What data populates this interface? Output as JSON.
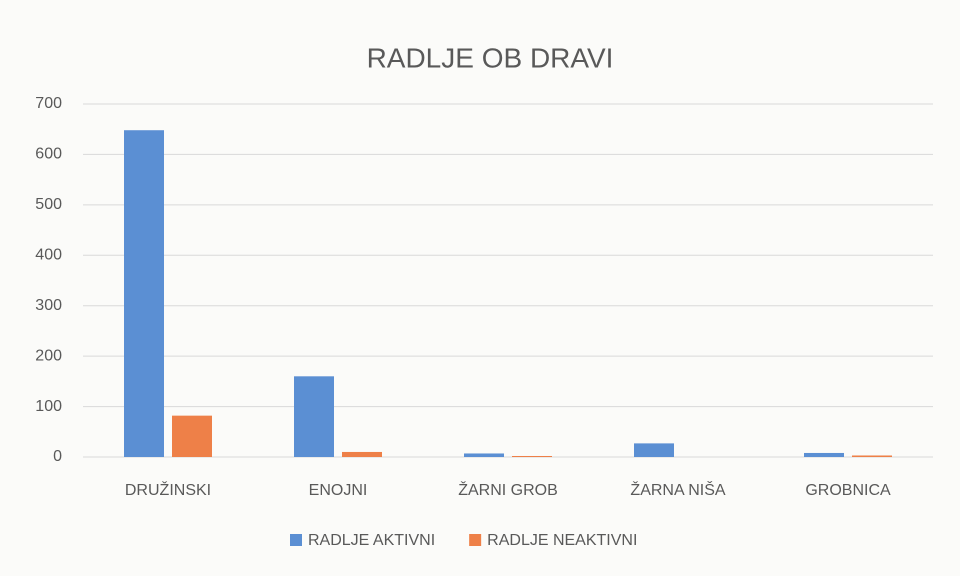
{
  "chart_data": {
    "type": "bar",
    "title": "RADLJE OB DRAVI",
    "categories": [
      "DRUŽINSKI",
      "ENOJNI",
      "ŽARNI GROB",
      "ŽARNA NIŠA",
      "GROBNICA"
    ],
    "series": [
      {
        "name": "RADLJE AKTIVNI",
        "color": "#5b8fd3",
        "values": [
          648,
          160,
          7,
          27,
          8
        ]
      },
      {
        "name": "RADLJE NEAKTIVNI",
        "color": "#ee8048",
        "values": [
          82,
          10,
          2,
          0,
          3
        ]
      }
    ],
    "ylim": [
      0,
      700
    ],
    "yticks": [
      0,
      100,
      200,
      300,
      400,
      500,
      600,
      700
    ],
    "grid": true,
    "legend": "bottom"
  }
}
